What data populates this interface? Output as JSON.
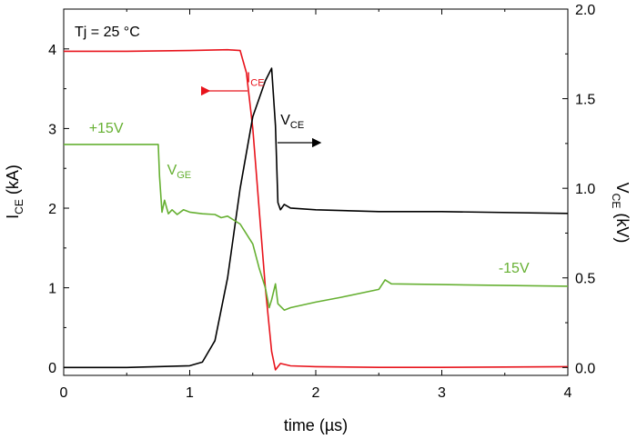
{
  "chart_data": {
    "type": "line",
    "title": "",
    "annotation_text": "Tj = 25 °C",
    "xlabel": "time (µs)",
    "ylabel_left": {
      "main": "I",
      "sub": "CE",
      "unit": " (kA)"
    },
    "ylabel_right": {
      "main": "V",
      "sub": "CE",
      "unit": " (kV)"
    },
    "xlim": [
      0,
      4
    ],
    "ylim_left": [
      -0.1,
      4.5
    ],
    "ylim_right": [
      -0.044,
      2.0
    ],
    "x_ticks": [
      "0",
      "1",
      "2",
      "3",
      "4"
    ],
    "y_ticks_left": [
      "0",
      "1",
      "2",
      "3",
      "4"
    ],
    "y_ticks_right": [
      "0.0",
      "0.5",
      "1.0",
      "1.5",
      "2.0"
    ],
    "colors": {
      "ice": "#e8141c",
      "vce": "#000000",
      "vge": "#66b032",
      "axis": "#000000"
    },
    "series": [
      {
        "name": "ICE",
        "axis": "left",
        "color": "#e8141c",
        "x": [
          0,
          0.5,
          1.0,
          1.3,
          1.4,
          1.45,
          1.5,
          1.55,
          1.6,
          1.65,
          1.68,
          1.72,
          1.8,
          2.0,
          2.5,
          3.0,
          4.0
        ],
        "values": [
          3.97,
          3.97,
          3.98,
          3.99,
          3.98,
          3.7,
          3.0,
          2.0,
          1.0,
          0.2,
          -0.03,
          0.05,
          0.02,
          0.01,
          0.0,
          0.0,
          0.01
        ]
      },
      {
        "name": "VCE",
        "axis": "right",
        "color": "#000000",
        "x": [
          0,
          0.5,
          1.0,
          1.1,
          1.2,
          1.3,
          1.4,
          1.5,
          1.6,
          1.65,
          1.68,
          1.7,
          1.72,
          1.75,
          1.8,
          2.0,
          2.5,
          3.0,
          4.0
        ],
        "values": [
          0.0,
          0.0,
          0.01,
          0.03,
          0.15,
          0.5,
          1.0,
          1.4,
          1.6,
          1.67,
          1.35,
          0.92,
          0.88,
          0.91,
          0.89,
          0.88,
          0.87,
          0.87,
          0.86
        ]
      },
      {
        "name": "VGE",
        "axis": "left",
        "color": "#66b032",
        "x": [
          0,
          0.5,
          0.75,
          0.76,
          0.78,
          0.8,
          0.83,
          0.86,
          0.9,
          0.95,
          1.0,
          1.1,
          1.2,
          1.25,
          1.3,
          1.4,
          1.5,
          1.55,
          1.6,
          1.63,
          1.65,
          1.68,
          1.7,
          1.75,
          1.8,
          2.0,
          2.2,
          2.5,
          2.55,
          2.6,
          3.0,
          4.0
        ],
        "values": [
          2.8,
          2.8,
          2.8,
          2.4,
          1.95,
          2.1,
          1.93,
          1.98,
          1.92,
          1.98,
          1.95,
          1.93,
          1.92,
          1.88,
          1.9,
          1.8,
          1.55,
          1.25,
          1.0,
          0.75,
          0.85,
          1.05,
          0.8,
          0.72,
          0.75,
          0.82,
          0.88,
          0.98,
          1.1,
          1.05,
          1.04,
          1.02
        ]
      }
    ],
    "labels": [
      {
        "name": "ice-label",
        "main": "I",
        "sub": "CE",
        "color": "#e8141c",
        "at": [
          1.45,
          3.58
        ],
        "axis": "left"
      },
      {
        "name": "vce-label",
        "main": "V",
        "sub": "CE",
        "color": "#000000",
        "at": [
          1.72,
          3.05
        ],
        "axis": "left"
      },
      {
        "name": "vge-label",
        "main": "V",
        "sub": "GE",
        "color": "#66b032",
        "at": [
          0.82,
          2.42
        ],
        "axis": "left"
      },
      {
        "name": "vge-high-label",
        "text": "+15V",
        "color": "#66b032",
        "at": [
          0.2,
          2.95
        ],
        "axis": "left"
      },
      {
        "name": "vge-low-label",
        "text": "-15V",
        "color": "#66b032",
        "at": [
          3.45,
          1.19
        ],
        "axis": "left"
      }
    ]
  }
}
